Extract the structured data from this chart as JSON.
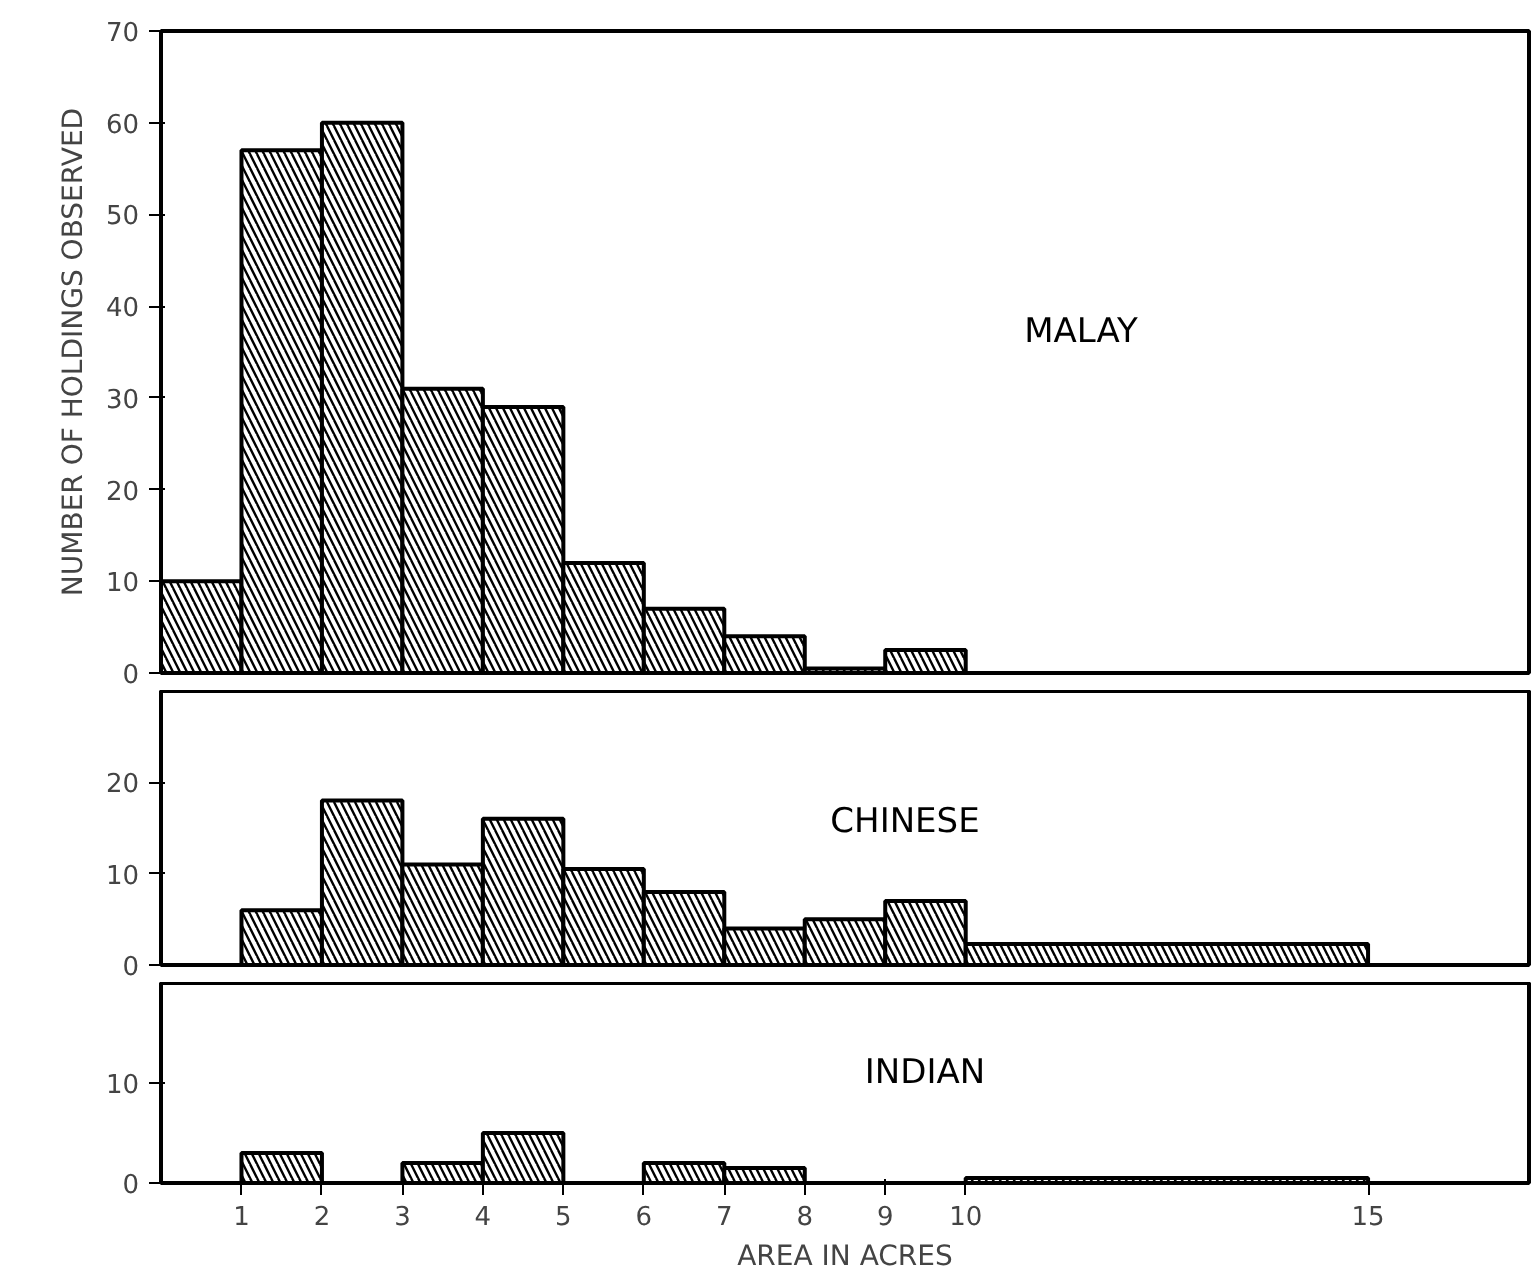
{
  "chart_data": [
    {
      "type": "histogram",
      "ylabel": "NUMBER OF HOLDINGS OBSERVED",
      "bins": [
        0,
        1,
        2,
        3,
        4,
        5,
        6,
        7,
        8,
        9,
        10
      ],
      "series": [
        {
          "name": "MALAY",
          "color": "#000000",
          "values": [
            10,
            57,
            60,
            31,
            29,
            12,
            7,
            4,
            0.5,
            2.5
          ]
        }
      ],
      "xlim": [
        0,
        17
      ],
      "ylim": [
        0,
        70
      ],
      "yticks": [
        0,
        10,
        20,
        30,
        40,
        50,
        60,
        70
      ],
      "tick_labels": "y",
      "grid": false,
      "legend": false
    },
    {
      "type": "histogram",
      "bins": [
        1,
        2,
        3,
        4,
        5,
        6,
        7,
        8,
        9,
        10,
        15
      ],
      "series": [
        {
          "name": "CHINESE",
          "color": "#000000",
          "values": [
            6,
            18,
            11,
            16,
            10.5,
            8,
            4,
            5,
            7,
            2.3
          ]
        }
      ],
      "xlim": [
        0,
        17
      ],
      "ylim": [
        0,
        30
      ],
      "yticks": [
        0,
        10,
        20
      ],
      "tick_labels": "y",
      "grid": false,
      "legend": false
    },
    {
      "type": "histogram",
      "xlabel": "AREA IN ACRES",
      "bins": [
        1,
        2,
        3,
        4,
        5,
        6,
        7,
        8,
        10,
        15
      ],
      "series": [
        {
          "name": "INDIAN",
          "color": "#000000",
          "values": [
            3,
            0,
            2,
            5,
            0,
            2,
            1.5,
            0,
            0.5
          ]
        }
      ],
      "xlim": [
        0,
        17
      ],
      "ylim": [
        0,
        20
      ],
      "yticks": [
        0,
        10
      ],
      "xticks": [
        1,
        2,
        3,
        4,
        5,
        6,
        7,
        8,
        9,
        10,
        15
      ],
      "grid": false,
      "legend": false
    }
  ]
}
